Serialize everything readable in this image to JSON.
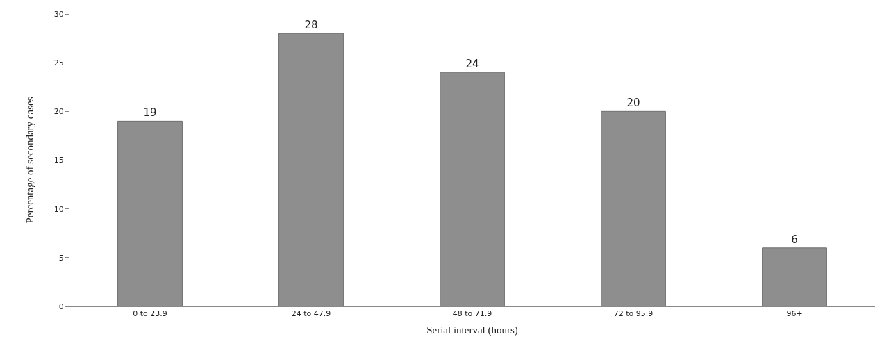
{
  "chart_data": {
    "type": "bar",
    "xlabel": "Serial interval (hours)",
    "ylabel": "Percentage of secondary cases",
    "categories": [
      "0 to 23.9",
      "24 to 47.9",
      "48 to 71.9",
      "72 to 95.9",
      "96+"
    ],
    "values": [
      19,
      28,
      24,
      20,
      6
    ],
    "color": "#8e8e8e",
    "data_labels": true,
    "ylim": [
      0,
      30
    ],
    "yticks": [
      0,
      5,
      10,
      15,
      20,
      25,
      30
    ]
  }
}
